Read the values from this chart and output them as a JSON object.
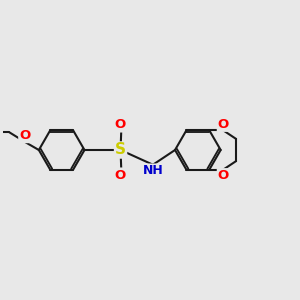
{
  "bg_color": "#e8e8e8",
  "bond_color": "#1a1a1a",
  "bond_width": 1.5,
  "atom_colors": {
    "O": "#ff0000",
    "S": "#cccc00",
    "N": "#0000cc",
    "C": "#1a1a1a"
  },
  "font_size_atom": 9.5,
  "fig_size": [
    3.0,
    3.0
  ],
  "dpi": 100,
  "xlim": [
    0.5,
    8.5
  ],
  "ylim": [
    2.8,
    7.2
  ]
}
